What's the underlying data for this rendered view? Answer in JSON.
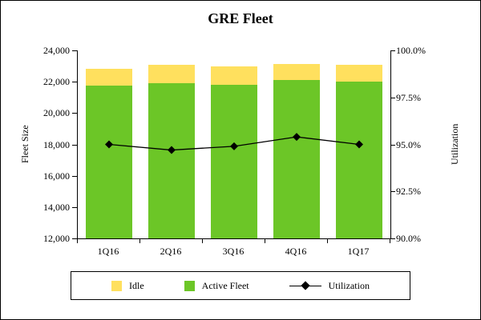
{
  "title": "GRE Fleet",
  "chart_data": {
    "type": "bar",
    "subtype": "stacked-bar-with-line",
    "categories": [
      "1Q16",
      "2Q16",
      "3Q16",
      "4Q16",
      "1Q17"
    ],
    "series": [
      {
        "name": "Active Fleet",
        "type": "bar",
        "color": "#6CC627",
        "values": [
          21750,
          21900,
          21800,
          22100,
          22000
        ]
      },
      {
        "name": "Idle",
        "type": "bar",
        "color": "#FFE05E",
        "values": [
          1100,
          1200,
          1200,
          1050,
          1100
        ]
      },
      {
        "name": "Utilization",
        "type": "line",
        "axis": "right",
        "color": "#000000",
        "values": [
          95.0,
          94.7,
          94.9,
          95.4,
          95.0
        ]
      }
    ],
    "left_axis": {
      "label": "Fleet Size",
      "min": 12000,
      "max": 24000,
      "step": 2000,
      "ticks": [
        "12,000",
        "14,000",
        "16,000",
        "18,000",
        "20,000",
        "22,000",
        "24,000"
      ]
    },
    "right_axis": {
      "label": "Utilization",
      "min": 90,
      "max": 100,
      "step": 2.5,
      "ticks": [
        "90.0%",
        "92.5%",
        "95.0%",
        "97.5%",
        "100.0%"
      ]
    },
    "legend": [
      {
        "label": "Idle",
        "swatch": "square",
        "color": "#FFE05E"
      },
      {
        "label": "Active Fleet",
        "swatch": "square",
        "color": "#6CC627"
      },
      {
        "label": "Utilization",
        "swatch": "line-diamond",
        "color": "#000000"
      }
    ],
    "grid": false,
    "legend_position": "bottom"
  }
}
